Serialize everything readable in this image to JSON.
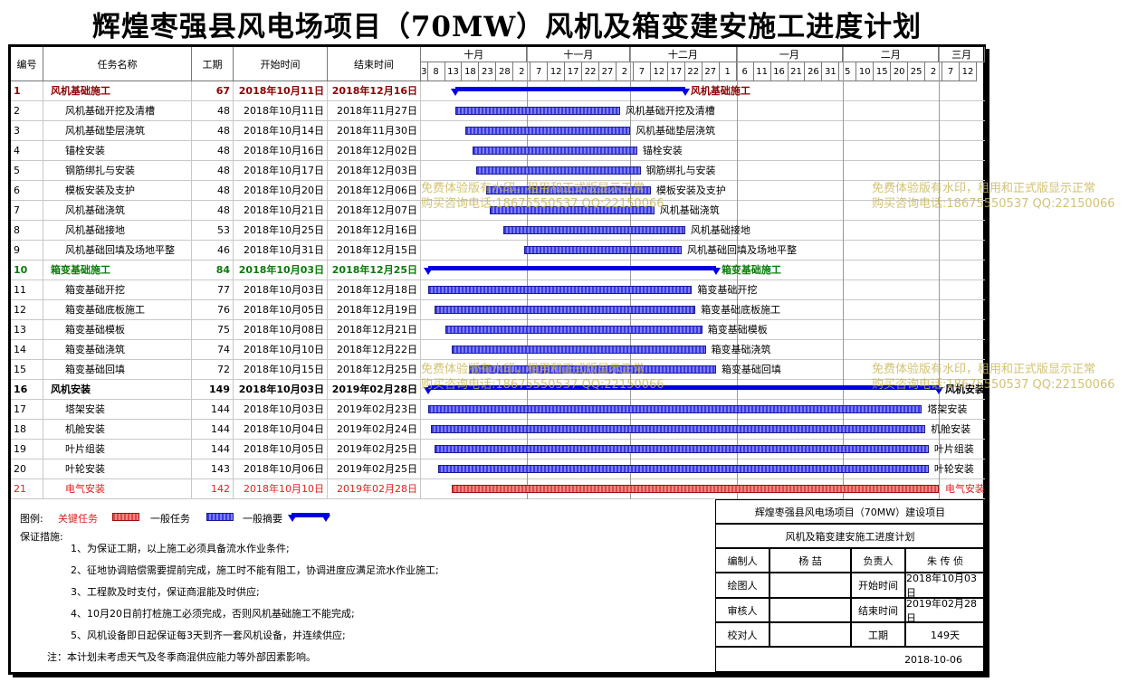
{
  "title": "辉煌枣强县风电场项目（70MW）风机及箱变建安施工进度计划",
  "headers": {
    "id": "编号",
    "name": "任务名称",
    "duration": "工期",
    "start": "开始时间",
    "end": "结束时间"
  },
  "months": [
    "十月",
    "十一月",
    "十二月",
    "一月",
    "二月",
    "三月"
  ],
  "day_ticks": [
    "3",
    "8",
    "13",
    "18",
    "23",
    "28",
    "2",
    "7",
    "12",
    "17",
    "22",
    "27",
    "2",
    "7",
    "12",
    "17",
    "22",
    "27",
    "1",
    "6",
    "11",
    "16",
    "21",
    "26",
    "31",
    "5",
    "10",
    "15",
    "20",
    "25",
    "2",
    "7",
    "12"
  ],
  "chart_data": {
    "type": "table",
    "timeline_start": "2018-10-01",
    "tasks": [
      {
        "id": "1",
        "name": "风机基础施工",
        "duration": "67",
        "start": "2018年10月11日",
        "end": "2018年12月16日",
        "start_date": "2018-10-11",
        "end_date": "2018-12-16",
        "kind": "summary",
        "color": "#8b0000"
      },
      {
        "id": "2",
        "name": "风机基础开挖及清槽",
        "duration": "48",
        "start": "2018年10月11日",
        "end": "2018年11月27日",
        "start_date": "2018-10-11",
        "end_date": "2018-11-27",
        "kind": "task"
      },
      {
        "id": "3",
        "name": "风机基础垫层浇筑",
        "duration": "48",
        "start": "2018年10月14日",
        "end": "2018年11月30日",
        "start_date": "2018-10-14",
        "end_date": "2018-11-30",
        "kind": "task"
      },
      {
        "id": "4",
        "name": "锚栓安装",
        "duration": "48",
        "start": "2018年10月16日",
        "end": "2018年12月02日",
        "start_date": "2018-10-16",
        "end_date": "2018-12-02",
        "kind": "task"
      },
      {
        "id": "5",
        "name": "钢筋绑扎与安装",
        "duration": "48",
        "start": "2018年10月17日",
        "end": "2018年12月03日",
        "start_date": "2018-10-17",
        "end_date": "2018-12-03",
        "kind": "task"
      },
      {
        "id": "6",
        "name": "模板安装及支护",
        "duration": "48",
        "start": "2018年10月20日",
        "end": "2018年12月06日",
        "start_date": "2018-10-20",
        "end_date": "2018-12-06",
        "kind": "task"
      },
      {
        "id": "7",
        "name": "风机基础浇筑",
        "duration": "48",
        "start": "2018年10月21日",
        "end": "2018年12月07日",
        "start_date": "2018-10-21",
        "end_date": "2018-12-07",
        "kind": "task"
      },
      {
        "id": "8",
        "name": "风机基础接地",
        "duration": "53",
        "start": "2018年10月25日",
        "end": "2018年12月16日",
        "start_date": "2018-10-25",
        "end_date": "2018-12-16",
        "kind": "task"
      },
      {
        "id": "9",
        "name": "风机基础回填及场地平整",
        "duration": "46",
        "start": "2018年10月31日",
        "end": "2018年12月15日",
        "start_date": "2018-10-31",
        "end_date": "2018-12-15",
        "kind": "task"
      },
      {
        "id": "10",
        "name": "箱变基础施工",
        "duration": "84",
        "start": "2018年10月03日",
        "end": "2018年12月25日",
        "start_date": "2018-10-03",
        "end_date": "2018-12-25",
        "kind": "summary",
        "color": "#0a7a0a"
      },
      {
        "id": "11",
        "name": "箱变基础开挖",
        "duration": "77",
        "start": "2018年10月03日",
        "end": "2018年12月18日",
        "start_date": "2018-10-03",
        "end_date": "2018-12-18",
        "kind": "task"
      },
      {
        "id": "12",
        "name": "箱变基础底板施工",
        "duration": "76",
        "start": "2018年10月05日",
        "end": "2018年12月19日",
        "start_date": "2018-10-05",
        "end_date": "2018-12-19",
        "kind": "task"
      },
      {
        "id": "13",
        "name": "箱变基础模板",
        "duration": "75",
        "start": "2018年10月08日",
        "end": "2018年12月21日",
        "start_date": "2018-10-08",
        "end_date": "2018-12-21",
        "kind": "task"
      },
      {
        "id": "14",
        "name": "箱变基础浇筑",
        "duration": "74",
        "start": "2018年10月10日",
        "end": "2018年12月22日",
        "start_date": "2018-10-10",
        "end_date": "2018-12-22",
        "kind": "task"
      },
      {
        "id": "15",
        "name": "箱变基础回填",
        "duration": "72",
        "start": "2018年10月15日",
        "end": "2018年12月25日",
        "start_date": "2018-10-15",
        "end_date": "2018-12-25",
        "kind": "task"
      },
      {
        "id": "16",
        "name": "风机安装",
        "duration": "149",
        "start": "2018年10月03日",
        "end": "2019年02月28日",
        "start_date": "2018-10-03",
        "end_date": "2019-02-28",
        "kind": "summary",
        "color": "#000000"
      },
      {
        "id": "17",
        "name": "塔架安装",
        "duration": "144",
        "start": "2018年10月03日",
        "end": "2019年02月23日",
        "start_date": "2018-10-03",
        "end_date": "2019-02-23",
        "kind": "task"
      },
      {
        "id": "18",
        "name": "机舱安装",
        "duration": "144",
        "start": "2018年10月04日",
        "end": "2019年02月24日",
        "start_date": "2018-10-04",
        "end_date": "2019-02-24",
        "kind": "task"
      },
      {
        "id": "19",
        "name": "叶片组装",
        "duration": "144",
        "start": "2018年10月05日",
        "end": "2019年02月25日",
        "start_date": "2018-10-05",
        "end_date": "2019-02-25",
        "kind": "task"
      },
      {
        "id": "20",
        "name": "叶轮安装",
        "duration": "143",
        "start": "2018年10月06日",
        "end": "2019年02月25日",
        "start_date": "2018-10-06",
        "end_date": "2019-02-25",
        "kind": "task"
      },
      {
        "id": "21",
        "name": "电气安装",
        "duration": "142",
        "start": "2018年10月10日",
        "end": "2019年02月28日",
        "start_date": "2018-10-10",
        "end_date": "2019-02-28",
        "kind": "critical",
        "color": "#e02020"
      }
    ]
  },
  "watermark": {
    "line1": "免费体验版有水印，租用和正式版显示正常",
    "line2": "购买咨询电话:18675550537 QQ:22150066"
  },
  "legend": {
    "label": "图例:",
    "critical": "关键任务",
    "normal": "一般任务",
    "summary": "一般摘要"
  },
  "notes": {
    "heading": "保证措施:",
    "items": [
      "1、为保证工期，以上施工必须具备流水作业条件;",
      "2、征地协调赔偿需要提前完成，施工时不能有阻工，协调进度应满足流水作业施工;",
      "3、工程款及时支付，保证商混能及时供应;",
      "4、10月20日前打桩施工必须完成，否则风机基础施工不能完成;",
      "5、风机设备即日起保证每3天到齐一套风机设备，并连续供应;"
    ],
    "footer": "注：本计划未考虑天气及冬季商混供应能力等外部因素影响。"
  },
  "title_block": {
    "project": "辉煌枣强县风电场项目（70MW）建设项目",
    "plan": "风机及箱变建安施工进度计划",
    "compiler_label": "编制人",
    "compiler": "杨 喆",
    "owner_label": "负责人",
    "owner": "朱 传 侦",
    "drawer_label": "绘图人",
    "start_label": "开始时间",
    "start": "2018年10月03日",
    "reviewer_label": "审核人",
    "end_label": "结束时间",
    "end": "2019年02月28日",
    "checker_label": "校对人",
    "duration_label": "工期",
    "duration": "149天",
    "date": "2018-10-06"
  }
}
